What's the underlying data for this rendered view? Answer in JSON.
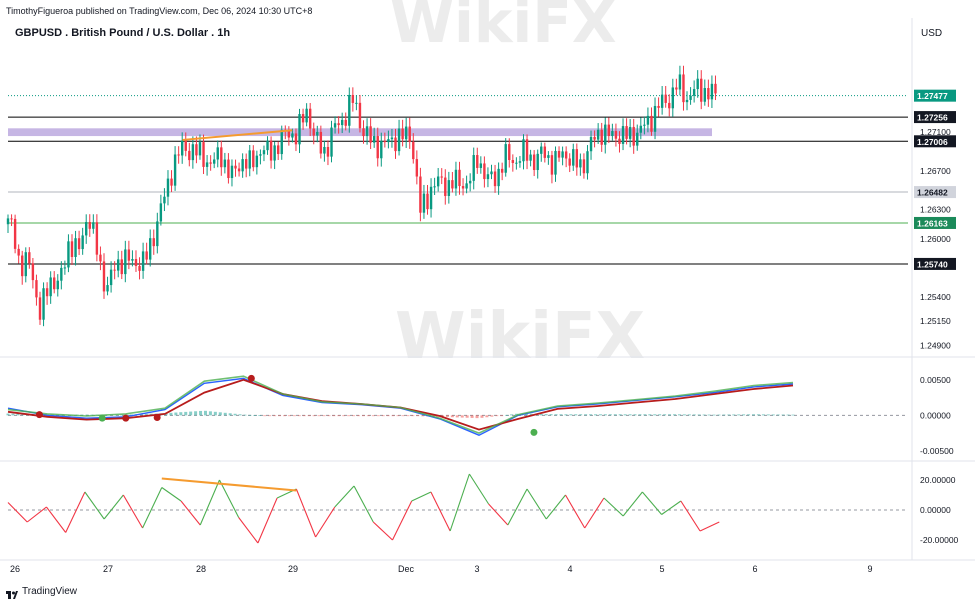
{
  "header": {
    "publisher": "TimothyFigueroa published on TradingView.com, Dec 06, 2024 10:30 UTC+8",
    "symbol_title": "GBPUSD . British Pound / U.S. Dollar . 1h",
    "currency": "USD"
  },
  "branding": {
    "logo_text": "TradingView",
    "watermark": "WikiFX"
  },
  "colors": {
    "up": "#089981",
    "down": "#f23645",
    "zone": "#b39ddb",
    "trendline": "#f59b2f",
    "macd": "#2962ff",
    "signal_ma": "#b71c1c",
    "ma_green": "#4caf50"
  },
  "chart_data": [
    {
      "type": "candlestick",
      "title": "GBPUSD . British Pound / U.S. Dollar . 1h",
      "x_tick_labels": [
        "26",
        "27",
        "28",
        "29",
        "Dec",
        "3",
        "4",
        "5",
        "6",
        "9"
      ],
      "y_tick_labels": [
        "1.27100",
        "1.26700",
        "1.26300",
        "1.26000",
        "1.25400",
        "1.25150",
        "1.24900"
      ],
      "ylim": [
        1.248,
        1.28
      ],
      "y_unit": "USD",
      "horizontal_levels": [
        {
          "value": 1.27477,
          "label": "1.27477",
          "style": "current-price-dotted"
        },
        {
          "value": 1.27256,
          "label": "1.27256",
          "style": "solid-black"
        },
        {
          "value": 1.27006,
          "label": "1.27006",
          "style": "solid-black"
        },
        {
          "value": 1.26482,
          "label": "1.26482",
          "style": "solid-grey"
        },
        {
          "value": 1.26163,
          "label": "1.26163",
          "style": "solid-green"
        },
        {
          "value": 1.2574,
          "label": "1.25740",
          "style": "solid-black"
        }
      ],
      "resistance_zone": [
        1.2706,
        1.2714
      ],
      "trendline": {
        "from": [
          0.275,
          1.2702
        ],
        "to": [
          0.448,
          1.2712
        ]
      },
      "series": [
        {
          "name": "GBPUSD 1h close path",
          "points": [
            [
              0.008,
              1.2615
            ],
            [
              0.02,
              1.2565
            ],
            [
              0.035,
              1.258
            ],
            [
              0.05,
              1.2518
            ],
            [
              0.065,
              1.256
            ],
            [
              0.08,
              1.255
            ],
            [
              0.095,
              1.2595
            ],
            [
              0.11,
              1.2585
            ],
            [
              0.125,
              1.2625
            ],
            [
              0.14,
              1.259
            ],
            [
              0.155,
              1.2545
            ],
            [
              0.17,
              1.2575
            ],
            [
              0.185,
              1.2578
            ],
            [
              0.2,
              1.2576
            ],
            [
              0.215,
              1.2575
            ],
            [
              0.23,
              1.2605
            ],
            [
              0.245,
              1.264
            ],
            [
              0.26,
              1.2675
            ],
            [
              0.275,
              1.2695
            ],
            [
              0.29,
              1.269
            ],
            [
              0.305,
              1.2688
            ],
            [
              0.32,
              1.2675
            ],
            [
              0.335,
              1.269
            ],
            [
              0.35,
              1.2662
            ],
            [
              0.365,
              1.268
            ],
            [
              0.38,
              1.2676
            ],
            [
              0.395,
              1.269
            ],
            [
              0.41,
              1.269
            ],
            [
              0.425,
              1.2695
            ],
            [
              0.44,
              1.2712
            ],
            [
              0.455,
              1.2705
            ],
            [
              0.47,
              1.2735
            ],
            [
              0.485,
              1.27
            ],
            [
              0.5,
              1.269
            ],
            [
              0.515,
              1.2715
            ],
            [
              0.53,
              1.2725
            ],
            [
              0.545,
              1.2745
            ],
            [
              0.56,
              1.271
            ],
            [
              0.575,
              1.27
            ],
            [
              0.59,
              1.2695
            ],
            [
              0.605,
              1.2703
            ],
            [
              0.62,
              1.2705
            ],
            [
              0.635,
              1.2708
            ],
            [
              0.65,
              1.2628
            ],
            [
              0.665,
              1.265
            ],
            [
              0.68,
              1.266
            ],
            [
              0.695,
              1.2655
            ],
            [
              0.71,
              1.266
            ],
            [
              0.725,
              1.2655
            ],
            [
              0.74,
              1.2685
            ],
            [
              0.755,
              1.266
            ],
            [
              0.77,
              1.2665
            ],
            [
              0.785,
              1.2685
            ],
            [
              0.8,
              1.268
            ],
            [
              0.815,
              1.269
            ],
            [
              0.83,
              1.268
            ],
            [
              0.845,
              1.269
            ],
            [
              0.86,
              1.2676
            ],
            [
              0.875,
              1.269
            ],
            [
              0.89,
              1.268
            ],
            [
              0.905,
              1.2675
            ],
            [
              0.92,
              1.27
            ],
            [
              0.935,
              1.2712
            ],
            [
              0.95,
              1.2705
            ],
            [
              0.965,
              1.2708
            ],
            [
              0.98,
              1.2705
            ],
            [
              0.995,
              1.2712
            ],
            [
              1.01,
              1.272
            ],
            [
              1.025,
              1.2738
            ],
            [
              1.04,
              1.2742
            ],
            [
              1.055,
              1.276
            ],
            [
              1.07,
              1.2745
            ],
            [
              1.085,
              1.2755
            ],
            [
              1.1,
              1.2752
            ],
            [
              1.115,
              1.2748
            ]
          ]
        }
      ]
    },
    {
      "type": "line",
      "title": "",
      "y_tick_labels": [
        "0.00500",
        "0.00000",
        "-0.00500"
      ],
      "ylim": [
        -0.006,
        0.0075
      ],
      "series": [
        {
          "name": "",
          "x": [
            0.0,
            0.05,
            0.1,
            0.15,
            0.2,
            0.25,
            0.3,
            0.35,
            0.4,
            0.45,
            0.5,
            0.55,
            0.6,
            0.65,
            0.7,
            0.75,
            0.8,
            0.85,
            0.9,
            0.95,
            1.0
          ],
          "values": [
            0.001,
            0.0,
            -0.0004,
            -0.0002,
            0.0008,
            0.0045,
            0.0052,
            0.0028,
            0.0018,
            0.0015,
            0.001,
            -0.0005,
            -0.0028,
            0.0,
            0.0012,
            0.0016,
            0.0021,
            0.0026,
            0.0032,
            0.004,
            0.0044
          ]
        },
        {
          "name": "",
          "x": [
            0.0,
            0.05,
            0.1,
            0.15,
            0.2,
            0.25,
            0.3,
            0.35,
            0.4,
            0.45,
            0.5,
            0.55,
            0.6,
            0.65,
            0.7,
            0.75,
            0.8,
            0.85,
            0.9,
            0.95,
            1.0
          ],
          "values": [
            0.0005,
            -0.0002,
            -0.0006,
            -0.0004,
            0.0002,
            0.0032,
            0.005,
            0.003,
            0.002,
            0.0016,
            0.0011,
            -0.0001,
            -0.002,
            -0.0005,
            0.0009,
            0.0013,
            0.0018,
            0.0023,
            0.003,
            0.0037,
            0.0042
          ]
        },
        {
          "name": "",
          "x": [
            0.0,
            0.05,
            0.1,
            0.15,
            0.2,
            0.25,
            0.3,
            0.35,
            0.4,
            0.45,
            0.5,
            0.55,
            0.6,
            0.65,
            0.7,
            0.75,
            0.8,
            0.85,
            0.9,
            0.95,
            1.0
          ],
          "values": [
            0.0008,
            0.0002,
            -0.0001,
            0.0002,
            0.001,
            0.0048,
            0.0055,
            0.003,
            0.0019,
            0.0016,
            0.0011,
            -0.0004,
            -0.0025,
            0.0001,
            0.0013,
            0.0017,
            0.0022,
            0.0027,
            0.0034,
            0.0042,
            0.0046
          ]
        }
      ]
    },
    {
      "type": "line",
      "title": "",
      "y_tick_labels": [
        "20.00000",
        "0.00000",
        "-20.00000"
      ],
      "ylim": [
        -30,
        30
      ],
      "series": [
        {
          "name": "",
          "x": [
            0.0,
            0.03,
            0.06,
            0.09,
            0.12,
            0.15,
            0.18,
            0.21,
            0.24,
            0.27,
            0.3,
            0.33,
            0.36,
            0.39,
            0.42,
            0.45,
            0.48,
            0.51,
            0.54,
            0.57,
            0.6,
            0.63,
            0.66,
            0.69,
            0.72,
            0.75,
            0.78,
            0.81,
            0.84,
            0.87,
            0.9,
            0.93,
            0.96,
            0.99,
            1.02,
            1.05,
            1.08,
            1.11
          ],
          "values": [
            5,
            -8,
            2,
            -15,
            12,
            -6,
            10,
            -12,
            15,
            6,
            -10,
            20,
            -5,
            -22,
            8,
            14,
            -18,
            2,
            16,
            -8,
            -20,
            6,
            12,
            -14,
            24,
            4,
            -10,
            14,
            -6,
            10,
            -12,
            8,
            -4,
            12,
            -3,
            6,
            -14,
            -8
          ]
        }
      ]
    }
  ]
}
